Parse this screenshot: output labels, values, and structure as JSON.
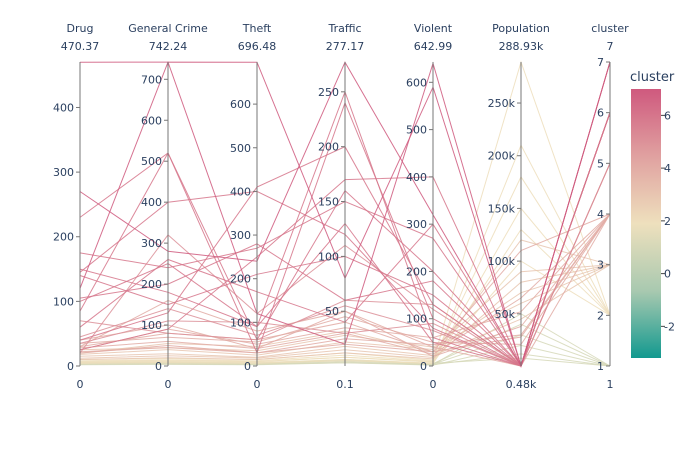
{
  "chart_data": {
    "type": "parallel_coordinates",
    "color_variable": "cluster",
    "colorscale": {
      "name": "Tealrose",
      "stops": [
        [
          0.0,
          "#009B9E"
        ],
        [
          0.17,
          "#42B7B9"
        ],
        [
          0.33,
          "#A7D3D4"
        ],
        [
          0.5,
          "#F1F1F1"
        ],
        [
          0.67,
          "#E4C1D9"
        ],
        [
          0.83,
          "#D691C1"
        ],
        [
          1.0,
          "#C75DAB"
        ]
      ],
      "display_stops": [
        [
          0.0,
          "#12998f"
        ],
        [
          0.25,
          "#a9c9b0"
        ],
        [
          0.5,
          "#eee0bd"
        ],
        [
          0.75,
          "#e0a1a0"
        ],
        [
          1.0,
          "#cf597e"
        ]
      ],
      "cmin": -3.2,
      "cmax": 7.0
    },
    "colorbar": {
      "title": "cluster",
      "ticks": [
        "-2",
        "0",
        "2",
        "4",
        "6"
      ],
      "tick_values": [
        -2,
        0,
        2,
        4,
        6
      ]
    },
    "dimensions": [
      {
        "label": "Drug",
        "range_label": "470.37",
        "bottom_label": "0",
        "min": 0,
        "max": 470.37,
        "ticks": [
          {
            "v": 0,
            "t": "0"
          },
          {
            "v": 100,
            "t": "100"
          },
          {
            "v": 200,
            "t": "200"
          },
          {
            "v": 300,
            "t": "300"
          },
          {
            "v": 400,
            "t": "400"
          }
        ]
      },
      {
        "label": "General Crime",
        "range_label": "742.24",
        "bottom_label": "0",
        "min": 0,
        "max": 742.24,
        "ticks": [
          {
            "v": 0,
            "t": "0"
          },
          {
            "v": 100,
            "t": "100"
          },
          {
            "v": 200,
            "t": "200"
          },
          {
            "v": 300,
            "t": "300"
          },
          {
            "v": 400,
            "t": "400"
          },
          {
            "v": 500,
            "t": "500"
          },
          {
            "v": 600,
            "t": "600"
          },
          {
            "v": 700,
            "t": "700"
          }
        ]
      },
      {
        "label": "Theft",
        "range_label": "696.48",
        "bottom_label": "0",
        "min": 0,
        "max": 696.48,
        "ticks": [
          {
            "v": 0,
            "t": "0"
          },
          {
            "v": 100,
            "t": "100"
          },
          {
            "v": 200,
            "t": "200"
          },
          {
            "v": 300,
            "t": "300"
          },
          {
            "v": 400,
            "t": "400"
          },
          {
            "v": 500,
            "t": "500"
          },
          {
            "v": 600,
            "t": "600"
          }
        ]
      },
      {
        "label": "Traffic",
        "range_label": "277.17",
        "bottom_label": "0.1",
        "min": 0.1,
        "max": 277.17,
        "ticks": [
          {
            "v": 50,
            "t": "50"
          },
          {
            "v": 100,
            "t": "100"
          },
          {
            "v": 150,
            "t": "150"
          },
          {
            "v": 200,
            "t": "200"
          },
          {
            "v": 250,
            "t": "250"
          }
        ]
      },
      {
        "label": "Violent",
        "range_label": "642.99",
        "bottom_label": "0",
        "min": 0,
        "max": 642.99,
        "ticks": [
          {
            "v": 0,
            "t": "0"
          },
          {
            "v": 100,
            "t": "100"
          },
          {
            "v": 200,
            "t": "200"
          },
          {
            "v": 300,
            "t": "300"
          },
          {
            "v": 400,
            "t": "400"
          },
          {
            "v": 500,
            "t": "500"
          },
          {
            "v": 600,
            "t": "600"
          }
        ]
      },
      {
        "label": "Population",
        "range_label": "288.93k",
        "bottom_label": "0.48k",
        "min": 480,
        "max": 288930,
        "ticks": [
          {
            "v": 50000,
            "t": "50k"
          },
          {
            "v": 100000,
            "t": "100k"
          },
          {
            "v": 150000,
            "t": "150k"
          },
          {
            "v": 200000,
            "t": "200k"
          },
          {
            "v": 250000,
            "t": "250k"
          }
        ]
      },
      {
        "label": "cluster",
        "range_label": "7",
        "bottom_label": "1",
        "min": 1,
        "max": 7,
        "ticks": [
          {
            "v": 1,
            "t": "1"
          },
          {
            "v": 2,
            "t": "2"
          },
          {
            "v": 3,
            "t": "3"
          },
          {
            "v": 4,
            "t": "4"
          },
          {
            "v": 5,
            "t": "5"
          },
          {
            "v": 6,
            "t": "6"
          },
          {
            "v": 7,
            "t": "7"
          }
        ]
      }
    ],
    "records": [
      [
        470,
        742,
        120,
        20,
        640,
        480,
        7
      ],
      [
        120,
        742,
        696,
        80,
        590,
        480,
        7
      ],
      [
        270,
        280,
        240,
        277,
        320,
        480,
        7
      ],
      [
        230,
        520,
        60,
        160,
        200,
        480,
        6
      ],
      [
        145,
        400,
        400,
        120,
        80,
        480,
        6
      ],
      [
        175,
        240,
        270,
        150,
        270,
        480,
        6
      ],
      [
        140,
        150,
        210,
        100,
        150,
        480,
        6
      ],
      [
        105,
        200,
        280,
        60,
        180,
        480,
        6
      ],
      [
        150,
        180,
        90,
        130,
        50,
        480,
        6
      ],
      [
        85,
        520,
        30,
        240,
        100,
        480,
        6
      ],
      [
        60,
        260,
        170,
        40,
        300,
        480,
        6
      ],
      [
        40,
        130,
        410,
        200,
        130,
        480,
        6
      ],
      [
        25,
        90,
        250,
        170,
        400,
        480,
        6
      ],
      [
        100,
        250,
        90,
        250,
        60,
        480,
        6
      ],
      [
        70,
        80,
        60,
        60,
        130,
        480,
        5
      ],
      [
        20,
        320,
        120,
        110,
        120,
        480,
        5
      ],
      [
        35,
        110,
        100,
        30,
        90,
        480,
        5
      ],
      [
        45,
        140,
        70,
        55,
        75,
        480,
        5
      ],
      [
        30,
        160,
        80,
        50,
        40,
        480,
        4
      ],
      [
        40,
        100,
        40,
        50,
        20,
        38000,
        4
      ],
      [
        30,
        80,
        60,
        40,
        30,
        28000,
        4
      ],
      [
        25,
        90,
        50,
        35,
        60,
        52000,
        4
      ],
      [
        28,
        60,
        40,
        30,
        25,
        65000,
        4
      ],
      [
        35,
        70,
        55,
        45,
        50,
        21000,
        4
      ],
      [
        20,
        50,
        30,
        25,
        45,
        30000,
        4
      ],
      [
        22,
        45,
        30,
        20,
        30,
        110000,
        4
      ],
      [
        18,
        40,
        25,
        22,
        35,
        90000,
        3
      ],
      [
        15,
        30,
        20,
        18,
        22,
        45000,
        3
      ],
      [
        12,
        25,
        18,
        15,
        18,
        120000,
        3
      ],
      [
        10,
        20,
        15,
        12,
        15,
        80000,
        3
      ],
      [
        25,
        45,
        35,
        28,
        40,
        60000,
        3
      ],
      [
        20,
        55,
        45,
        32,
        30,
        70000,
        3
      ],
      [
        8,
        15,
        12,
        10,
        10,
        288930,
        2
      ],
      [
        10,
        18,
        15,
        12,
        12,
        180000,
        2
      ],
      [
        6,
        12,
        10,
        8,
        8,
        150000,
        2
      ],
      [
        5,
        10,
        8,
        6,
        6,
        210000,
        2
      ],
      [
        4,
        8,
        6,
        5,
        5,
        130000,
        2
      ],
      [
        7,
        14,
        10,
        8,
        9,
        100000,
        2
      ],
      [
        3,
        6,
        4,
        4,
        3,
        50000,
        1
      ],
      [
        4,
        8,
        5,
        5,
        4,
        30000,
        1
      ],
      [
        2,
        4,
        3,
        3,
        2,
        20000,
        1
      ],
      [
        5,
        10,
        6,
        6,
        5,
        40000,
        1
      ],
      [
        3,
        5,
        4,
        3,
        3,
        12000,
        1
      ],
      [
        6,
        9,
        7,
        5,
        6,
        8000,
        1
      ]
    ]
  }
}
